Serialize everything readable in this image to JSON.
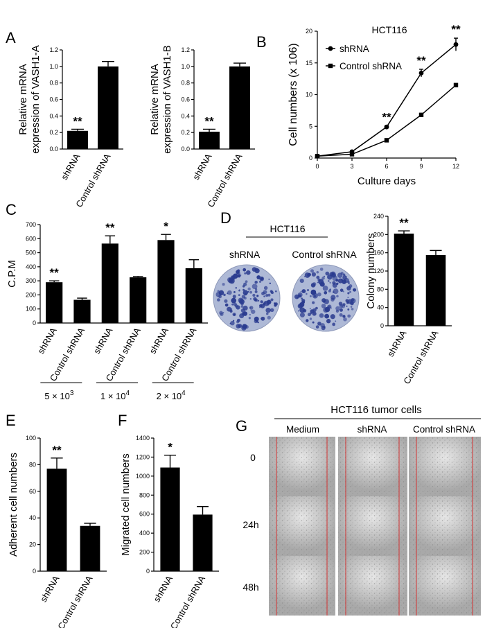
{
  "colors": {
    "bar": "#000000",
    "well": "#aeb9d6",
    "colony": "#2a3b8f",
    "photo": "#a9a9a9",
    "wound": "#d33333"
  },
  "chart_data": [
    {
      "id": "A1",
      "letter": "A",
      "type": "bar",
      "ylabel_line1": "Relative mRNA",
      "ylabel_line2": "expression of VASH1-A",
      "categories": [
        "shRNA",
        "Control shRNA"
      ],
      "values": [
        0.22,
        1.0
      ],
      "errors": [
        0.02,
        0.06
      ],
      "annotations": [
        "**",
        ""
      ],
      "ylim": [
        0,
        1.2
      ],
      "yticks": [
        "0.0",
        "0.2",
        "0.4",
        "0.6",
        "0.8",
        "1.0",
        "1.2"
      ]
    },
    {
      "id": "A2",
      "letter": "",
      "type": "bar",
      "ylabel_line1": "Relative mRNA",
      "ylabel_line2": "expression of VASH1-B",
      "categories": [
        "shRNA",
        "Control shRNA"
      ],
      "values": [
        0.21,
        1.0
      ],
      "errors": [
        0.03,
        0.04
      ],
      "annotations": [
        "**",
        ""
      ],
      "ylim": [
        0,
        1.2
      ],
      "yticks": [
        "0.0",
        "0.2",
        "0.4",
        "0.6",
        "0.8",
        "1.0",
        "1.2"
      ]
    },
    {
      "id": "B",
      "letter": "B",
      "type": "line",
      "title": "HCT116",
      "ylabel": "Cell numbers (x 106)",
      "xlabel": "Culture days",
      "x": [
        0,
        3,
        6,
        9,
        12
      ],
      "xticks": [
        "0",
        "3",
        "6",
        "9",
        "12"
      ],
      "yticks": [
        "0",
        "5",
        "10",
        "15",
        "20"
      ],
      "ylim": [
        0,
        20
      ],
      "series": [
        {
          "name": "shRNA",
          "marker": "circle",
          "values": [
            0.3,
            1.0,
            4.9,
            13.4,
            17.9
          ],
          "errors": [
            0.1,
            0.15,
            0.2,
            0.6,
            1.0
          ]
        },
        {
          "name": "Control shRNA",
          "marker": "square",
          "values": [
            0.3,
            0.6,
            2.8,
            6.8,
            11.5
          ],
          "errors": [
            0.1,
            0.1,
            0.15,
            0.2,
            0.2
          ]
        }
      ],
      "annotations": [
        {
          "x": 6,
          "text": "**"
        },
        {
          "x": 9,
          "text": "**"
        },
        {
          "x": 12,
          "text": "**"
        }
      ]
    },
    {
      "id": "C",
      "letter": "C",
      "type": "bar",
      "ylabel": "C.P.M",
      "categories": [
        "shRNA",
        "Control shRNA",
        "shRNA",
        "Control shRNA",
        "shRNA",
        "Control shRNA"
      ],
      "values": [
        290,
        165,
        565,
        325,
        590,
        390
      ],
      "errors": [
        10,
        12,
        55,
        6,
        40,
        60
      ],
      "annotations": [
        "**",
        "",
        "**",
        "",
        "*",
        ""
      ],
      "ylim": [
        0,
        700
      ],
      "yticks": [
        "0",
        "100",
        "200",
        "300",
        "400",
        "500",
        "600",
        "700"
      ],
      "groups": [
        {
          "base": "5 × 10",
          "exp": "3"
        },
        {
          "base": "1 × 10",
          "exp": "4"
        },
        {
          "base": "2 × 10",
          "exp": "4"
        }
      ]
    },
    {
      "id": "D",
      "letter": "D",
      "type": "bar",
      "ylabel": "Colony numbers",
      "categories": [
        "shRNA",
        "Control shRNA"
      ],
      "values": [
        202,
        155
      ],
      "errors": [
        6,
        10
      ],
      "annotations": [
        "**",
        ""
      ],
      "ylim": [
        0,
        240
      ],
      "yticks": [
        "0",
        "40",
        "80",
        "120",
        "160",
        "200",
        "240"
      ]
    },
    {
      "id": "E",
      "letter": "E",
      "type": "bar",
      "ylabel": "Adherent cell numbers",
      "categories": [
        "shRNA",
        "Control shRNA"
      ],
      "values": [
        77,
        34
      ],
      "errors": [
        8,
        2
      ],
      "annotations": [
        "**",
        ""
      ],
      "ylim": [
        0,
        100
      ],
      "yticks": [
        "0",
        "20",
        "40",
        "60",
        "80",
        "100"
      ]
    },
    {
      "id": "F",
      "letter": "F",
      "type": "bar",
      "ylabel": "Migrated cell numbers",
      "categories": [
        "shRNA",
        "Control shRNA"
      ],
      "values": [
        1090,
        595
      ],
      "errors": [
        130,
        85
      ],
      "annotations": [
        "*",
        ""
      ],
      "ylim": [
        0,
        1400
      ],
      "yticks": [
        "0",
        "200",
        "400",
        "600",
        "800",
        "1000",
        "1200",
        "1400"
      ]
    }
  ],
  "panel_D_images": {
    "header": "HCT116",
    "labels": [
      "shRNA",
      "Control shRNA"
    ]
  },
  "panel_G": {
    "letter": "G",
    "title": "HCT116 tumor cells",
    "columns": [
      "Medium",
      "shRNA",
      "Control shRNA"
    ],
    "rows": [
      "0",
      "24h",
      "48h"
    ]
  }
}
